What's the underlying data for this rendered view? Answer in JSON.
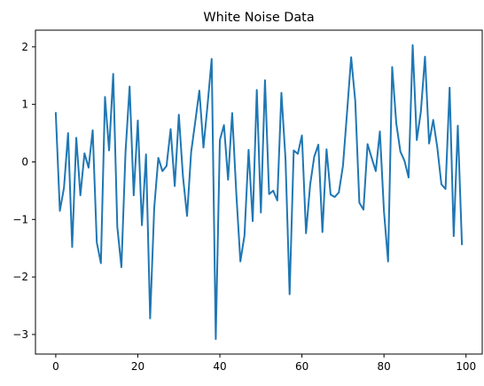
{
  "chart_data": {
    "type": "line",
    "title": "White Noise Data",
    "xlabel": "",
    "ylabel": "",
    "xlim": [
      -4.95,
      103.95
    ],
    "ylim": [
      -3.34,
      2.29
    ],
    "xticks": [
      0,
      20,
      40,
      60,
      80,
      100
    ],
    "yticks": [
      -3,
      -2,
      -1,
      0,
      1,
      2
    ],
    "grid": false,
    "legend": "none",
    "series_color": "#1f77b4",
    "x": [
      0,
      1,
      2,
      3,
      4,
      5,
      6,
      7,
      8,
      9,
      10,
      11,
      12,
      13,
      14,
      15,
      16,
      17,
      18,
      19,
      20,
      21,
      22,
      23,
      24,
      25,
      26,
      27,
      28,
      29,
      30,
      31,
      32,
      33,
      34,
      35,
      36,
      37,
      38,
      39,
      40,
      41,
      42,
      43,
      44,
      45,
      46,
      47,
      48,
      49,
      50,
      51,
      52,
      53,
      54,
      55,
      56,
      57,
      58,
      59,
      60,
      61,
      62,
      63,
      64,
      65,
      66,
      67,
      68,
      69,
      70,
      71,
      72,
      73,
      74,
      75,
      76,
      77,
      78,
      79,
      80,
      81,
      82,
      83,
      84,
      85,
      86,
      87,
      88,
      89,
      90,
      91,
      92,
      93,
      94,
      95,
      96,
      97,
      98,
      99
    ],
    "values": [
      0.85,
      -0.85,
      -0.45,
      0.5,
      -1.48,
      0.42,
      -0.58,
      0.15,
      -0.1,
      0.55,
      -1.4,
      -1.76,
      1.13,
      0.2,
      1.53,
      -1.13,
      -1.83,
      0.17,
      1.31,
      -0.58,
      0.72,
      -1.1,
      0.13,
      -2.72,
      -0.8,
      0.07,
      -0.16,
      -0.07,
      0.57,
      -0.42,
      0.82,
      -0.25,
      -0.94,
      0.17,
      0.7,
      1.24,
      0.25,
      0.99,
      1.79,
      -3.08,
      0.38,
      0.64,
      -0.31,
      0.85,
      -0.54,
      -1.73,
      -1.28,
      0.21,
      -1.03,
      1.25,
      -0.88,
      1.42,
      -0.56,
      -0.5,
      -0.67,
      1.2,
      0.05,
      -2.3,
      0.2,
      0.14,
      0.46,
      -1.24,
      -0.4,
      0.09,
      0.3,
      -1.22,
      0.22,
      -0.57,
      -0.61,
      -0.53,
      -0.07,
      0.86,
      1.82,
      1.06,
      -0.71,
      -0.83,
      0.31,
      0.07,
      -0.16,
      0.53,
      -0.86,
      -1.73,
      1.65,
      0.67,
      0.18,
      0.02,
      -0.27,
      2.03,
      0.38,
      0.88,
      1.83,
      0.32,
      0.73,
      0.25,
      -0.39,
      -0.47,
      1.29,
      -1.29,
      0.63,
      -1.43
    ]
  }
}
